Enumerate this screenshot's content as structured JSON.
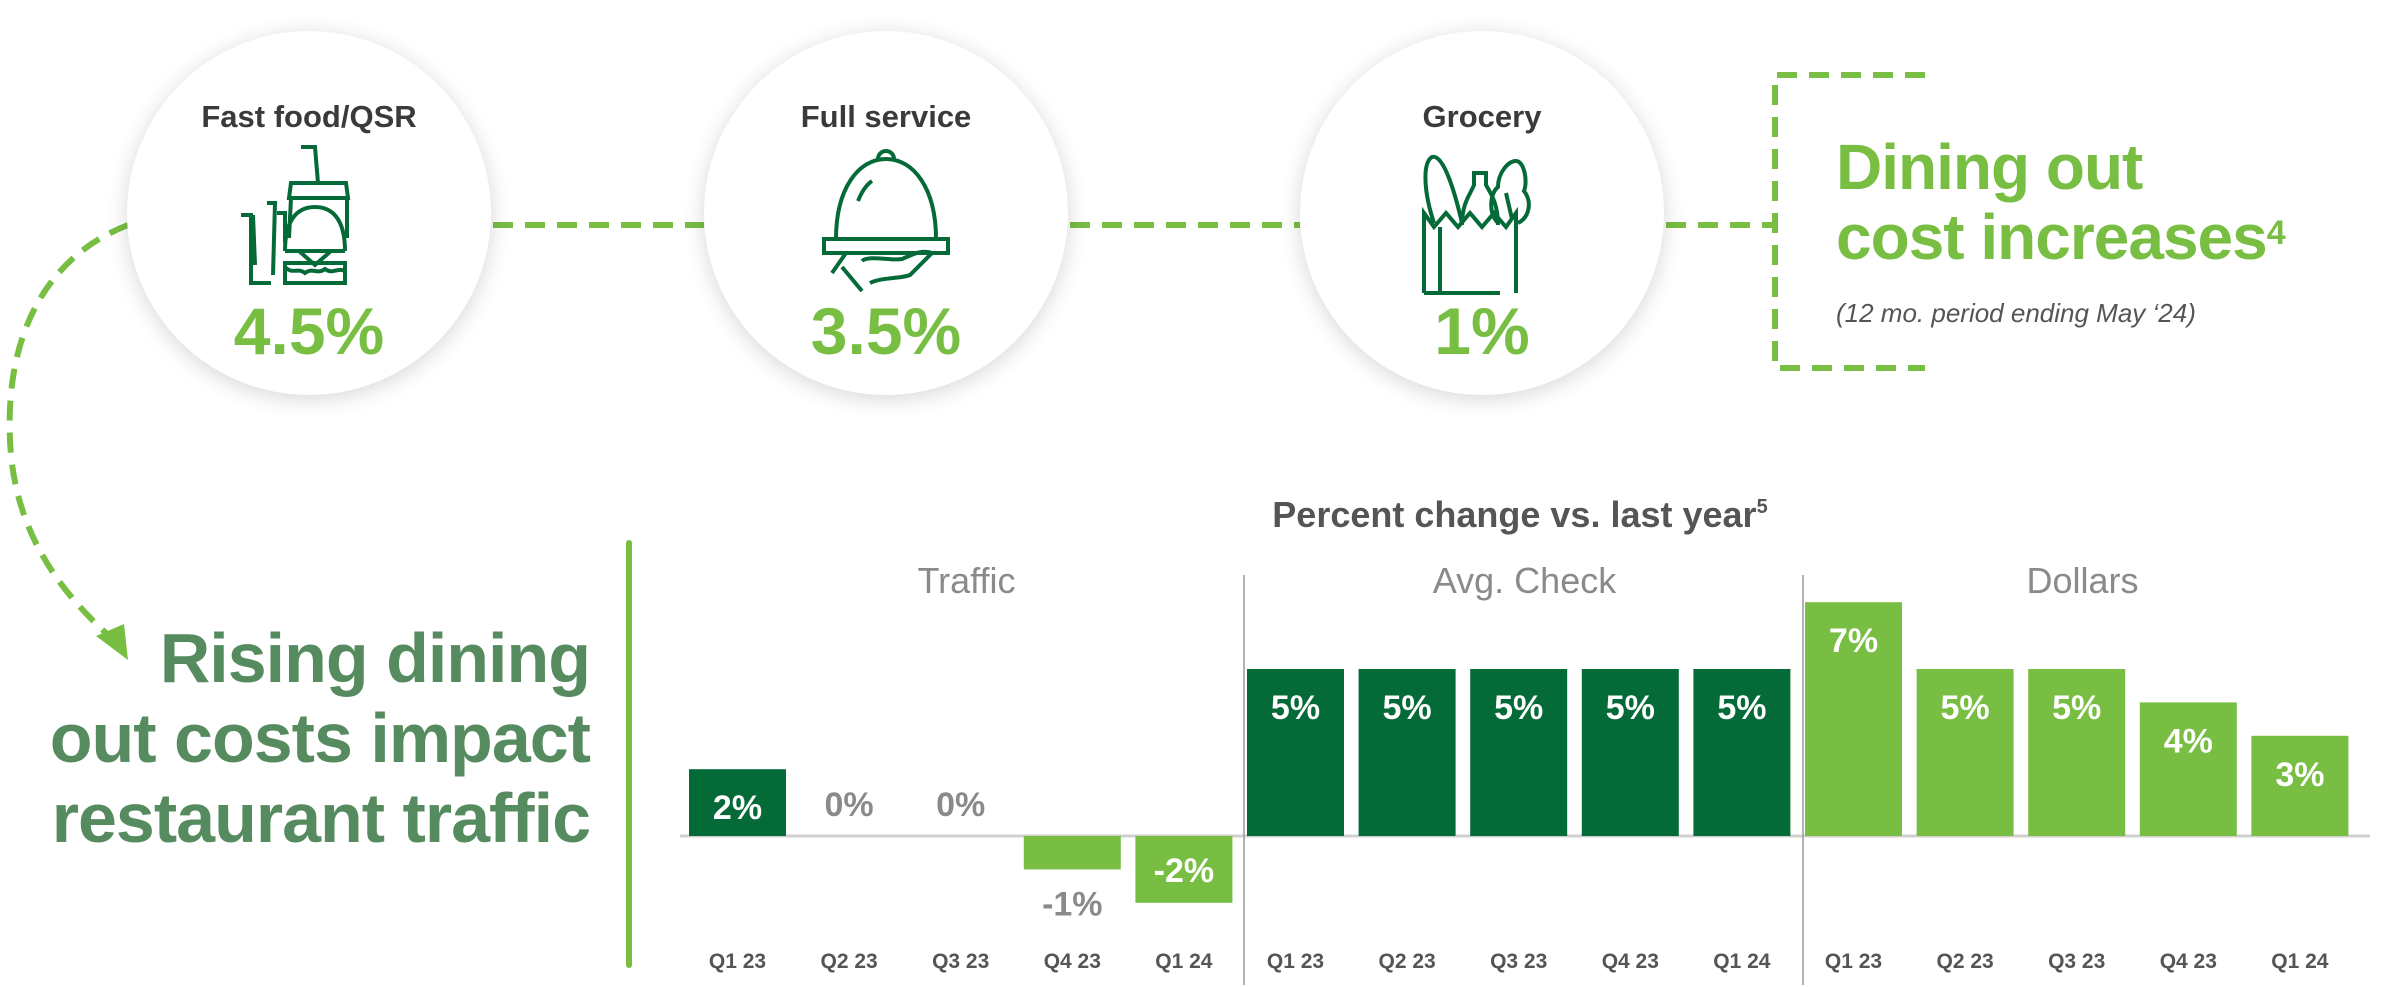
{
  "categories_top": [
    {
      "title": "Fast food/QSR",
      "value": "4.5%",
      "icon": "fast-food-icon"
    },
    {
      "title": "Full service",
      "value": "3.5%",
      "icon": "cloche-serving-icon"
    },
    {
      "title": "Grocery",
      "value": "1%",
      "icon": "grocery-bag-icon"
    }
  ],
  "callout": {
    "heading_line1": "Dining out",
    "heading_line2": "cost increases",
    "footnote": "4",
    "subtitle": "(12 mo. period ending May ‘24)"
  },
  "left_heading": {
    "line1": "Rising dining",
    "line2": "out costs impact",
    "line3": "restaurant traffic"
  },
  "colors": {
    "dark_green": "#046A38",
    "light_green": "#78BE43",
    "heading_green": "#558B5E",
    "label_gray": "#8a8a8a"
  },
  "chart_data": {
    "type": "bar",
    "title": "Percent change vs. last year",
    "title_footnote": "5",
    "categories": [
      "Q1 23",
      "Q2 23",
      "Q3 23",
      "Q4 23",
      "Q1 24"
    ],
    "ylim": [
      -2,
      7
    ],
    "grid": false,
    "series": [
      {
        "name": "Traffic",
        "values": [
          2,
          0,
          0,
          -1,
          -2
        ],
        "labels": [
          "2%",
          "0%",
          "0%",
          "-1%",
          "-2%"
        ],
        "colors": [
          "#046A38",
          "#046A38",
          "#046A38",
          "#78BE43",
          "#78BE43"
        ]
      },
      {
        "name": "Avg. Check",
        "values": [
          5,
          5,
          5,
          5,
          5
        ],
        "labels": [
          "5%",
          "5%",
          "5%",
          "5%",
          "5%"
        ],
        "colors": [
          "#046A38",
          "#046A38",
          "#046A38",
          "#046A38",
          "#046A38"
        ]
      },
      {
        "name": "Dollars",
        "values": [
          7,
          5,
          5,
          4,
          3
        ],
        "labels": [
          "7%",
          "5%",
          "5%",
          "4%",
          "3%"
        ],
        "colors": [
          "#78BE43",
          "#78BE43",
          "#78BE43",
          "#78BE43",
          "#78BE43"
        ]
      }
    ]
  }
}
